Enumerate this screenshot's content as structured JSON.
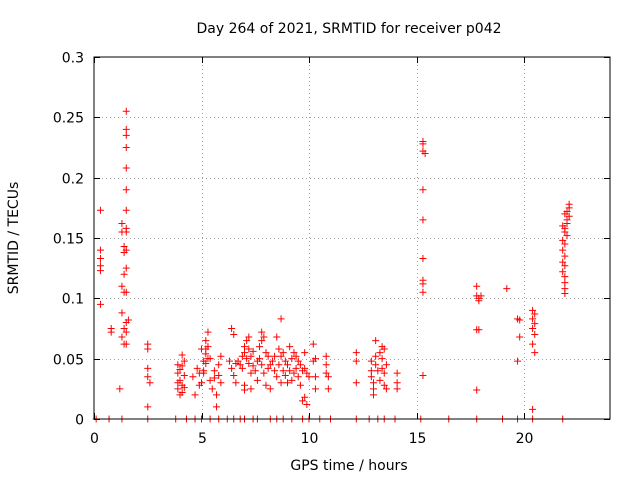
{
  "chart_data": {
    "type": "scatter",
    "title": "Day 264 of 2021, SRMTID for receiver p042",
    "xlabel": "GPS time / hours",
    "ylabel": "SRMTID / TECUs",
    "xlim": [
      0,
      24
    ],
    "ylim": [
      0,
      0.3
    ],
    "grid": true,
    "marker": "+",
    "colors": {
      "series": "#ff0000",
      "axis": "#000000",
      "grid": "#a0a0a0"
    },
    "x_ticks": [
      {
        "value": 0,
        "label": "0"
      },
      {
        "value": 5,
        "label": "5"
      },
      {
        "value": 10,
        "label": "10"
      },
      {
        "value": 15,
        "label": "15"
      },
      {
        "value": 20,
        "label": "20"
      }
    ],
    "y_ticks": [
      {
        "value": 0,
        "label": "0"
      },
      {
        "value": 0.05,
        "label": "0.05"
      },
      {
        "value": 0.1,
        "label": "0.1"
      },
      {
        "value": 0.15,
        "label": "0.15"
      },
      {
        "value": 0.2,
        "label": "0.2"
      },
      {
        "value": 0.25,
        "label": "0.25"
      },
      {
        "value": 0.3,
        "label": "0.3"
      }
    ],
    "points": [
      [
        0.3,
        0.173
      ],
      [
        0.3,
        0.14
      ],
      [
        0.3,
        0.133
      ],
      [
        0.3,
        0.127
      ],
      [
        0.3,
        0.123
      ],
      [
        0.3,
        0.095
      ],
      [
        0.8,
        0.075
      ],
      [
        0.8,
        0.072
      ],
      [
        1.2,
        0.025
      ],
      [
        1.3,
        0.162
      ],
      [
        1.3,
        0.155
      ],
      [
        1.4,
        0.143
      ],
      [
        1.4,
        0.138
      ],
      [
        1.4,
        0.12
      ],
      [
        1.3,
        0.11
      ],
      [
        1.4,
        0.105
      ],
      [
        1.3,
        0.088
      ],
      [
        1.4,
        0.075
      ],
      [
        1.3,
        0.068
      ],
      [
        1.4,
        0.062
      ],
      [
        1.5,
        0.255
      ],
      [
        1.5,
        0.24
      ],
      [
        1.5,
        0.235
      ],
      [
        1.5,
        0.225
      ],
      [
        1.5,
        0.208
      ],
      [
        1.5,
        0.19
      ],
      [
        1.5,
        0.173
      ],
      [
        1.5,
        0.158
      ],
      [
        1.5,
        0.155
      ],
      [
        1.5,
        0.14
      ],
      [
        1.5,
        0.125
      ],
      [
        1.5,
        0.105
      ],
      [
        1.5,
        0.08
      ],
      [
        1.5,
        0.072
      ],
      [
        1.5,
        0.062
      ],
      [
        1.6,
        0.082
      ],
      [
        2.5,
        0.062
      ],
      [
        2.5,
        0.058
      ],
      [
        2.5,
        0.042
      ],
      [
        2.5,
        0.035
      ],
      [
        2.6,
        0.03
      ],
      [
        2.5,
        0.01
      ],
      [
        3.9,
        0.045
      ],
      [
        3.9,
        0.038
      ],
      [
        3.9,
        0.03
      ],
      [
        3.9,
        0.025
      ],
      [
        4.0,
        0.041
      ],
      [
        4.0,
        0.032
      ],
      [
        4.1,
        0.028
      ],
      [
        4.1,
        0.022
      ],
      [
        4.1,
        0.053
      ],
      [
        4.2,
        0.048
      ],
      [
        4.2,
        0.036
      ],
      [
        4.2,
        0.026
      ],
      [
        4.0,
        0.02
      ],
      [
        4.1,
        0.044
      ],
      [
        4.6,
        0.035
      ],
      [
        4.7,
        0.02
      ],
      [
        4.8,
        0.042
      ],
      [
        4.9,
        0.038
      ],
      [
        4.9,
        0.028
      ],
      [
        5.0,
        0.03
      ],
      [
        5.1,
        0.048
      ],
      [
        5.1,
        0.04
      ],
      [
        5.1,
        0.038
      ],
      [
        5.2,
        0.065
      ],
      [
        5.2,
        0.058
      ],
      [
        5.2,
        0.054
      ],
      [
        5.2,
        0.046
      ],
      [
        5.3,
        0.072
      ],
      [
        5.3,
        0.06
      ],
      [
        5.3,
        0.05
      ],
      [
        5.4,
        0.05
      ],
      [
        5.4,
        0.032
      ],
      [
        5.5,
        0.025
      ],
      [
        5.6,
        0.04
      ],
      [
        5.6,
        0.034
      ],
      [
        5.7,
        0.02
      ],
      [
        5.7,
        0.01
      ],
      [
        5.8,
        0.045
      ],
      [
        5.8,
        0.036
      ],
      [
        5.9,
        0.052
      ],
      [
        5.9,
        0.03
      ],
      [
        5.0,
        0.058
      ],
      [
        6.3,
        0.048
      ],
      [
        6.4,
        0.075
      ],
      [
        6.4,
        0.042
      ],
      [
        6.5,
        0.07
      ],
      [
        6.5,
        0.036
      ],
      [
        6.6,
        0.046
      ],
      [
        6.6,
        0.03
      ],
      [
        6.7,
        0.048
      ],
      [
        6.8,
        0.045
      ],
      [
        6.9,
        0.052
      ],
      [
        6.9,
        0.042
      ],
      [
        7.0,
        0.06
      ],
      [
        7.0,
        0.055
      ],
      [
        7.0,
        0.028
      ],
      [
        7.0,
        0.024
      ],
      [
        7.1,
        0.065
      ],
      [
        7.1,
        0.05
      ],
      [
        7.2,
        0.068
      ],
      [
        7.2,
        0.058
      ],
      [
        7.2,
        0.046
      ],
      [
        7.3,
        0.052
      ],
      [
        7.3,
        0.038
      ],
      [
        7.3,
        0.025
      ],
      [
        7.4,
        0.056
      ],
      [
        7.4,
        0.044
      ],
      [
        7.5,
        0.04
      ],
      [
        7.6,
        0.048
      ],
      [
        7.6,
        0.032
      ],
      [
        7.7,
        0.06
      ],
      [
        7.7,
        0.05
      ],
      [
        7.8,
        0.072
      ],
      [
        7.8,
        0.065
      ],
      [
        7.8,
        0.045
      ],
      [
        7.9,
        0.068
      ],
      [
        7.9,
        0.038
      ],
      [
        8.0,
        0.055
      ],
      [
        8.0,
        0.028
      ],
      [
        8.1,
        0.052
      ],
      [
        8.1,
        0.042
      ],
      [
        8.2,
        0.045
      ],
      [
        8.2,
        0.025
      ],
      [
        8.3,
        0.048
      ],
      [
        8.4,
        0.052
      ],
      [
        8.4,
        0.04
      ],
      [
        8.5,
        0.068
      ],
      [
        8.5,
        0.035
      ],
      [
        8.6,
        0.058
      ],
      [
        8.6,
        0.045
      ],
      [
        8.7,
        0.083
      ],
      [
        8.7,
        0.052
      ],
      [
        8.7,
        0.03
      ],
      [
        8.8,
        0.055
      ],
      [
        8.8,
        0.04
      ],
      [
        8.9,
        0.048
      ],
      [
        8.9,
        0.036
      ],
      [
        9.0,
        0.045
      ],
      [
        9.0,
        0.03
      ],
      [
        9.1,
        0.06
      ],
      [
        9.1,
        0.04
      ],
      [
        9.2,
        0.05
      ],
      [
        9.2,
        0.032
      ],
      [
        9.3,
        0.055
      ],
      [
        9.3,
        0.038
      ],
      [
        9.4,
        0.052
      ],
      [
        9.4,
        0.042
      ],
      [
        9.5,
        0.048
      ],
      [
        9.5,
        0.035
      ],
      [
        9.6,
        0.045
      ],
      [
        9.6,
        0.028
      ],
      [
        9.7,
        0.04
      ],
      [
        9.7,
        0.015
      ],
      [
        9.8,
        0.055
      ],
      [
        9.8,
        0.042
      ],
      [
        9.8,
        0.018
      ],
      [
        9.9,
        0.038
      ],
      [
        9.9,
        0.012
      ],
      [
        10.0,
        0.035
      ],
      [
        10.2,
        0.062
      ],
      [
        10.2,
        0.048
      ],
      [
        10.3,
        0.05
      ],
      [
        10.3,
        0.035
      ],
      [
        10.3,
        0.025
      ],
      [
        10.8,
        0.052
      ],
      [
        10.8,
        0.045
      ],
      [
        10.8,
        0.038
      ],
      [
        10.9,
        0.035
      ],
      [
        10.9,
        0.025
      ],
      [
        12.2,
        0.055
      ],
      [
        12.2,
        0.048
      ],
      [
        12.2,
        0.03
      ],
      [
        12.9,
        0.048
      ],
      [
        12.9,
        0.04
      ],
      [
        12.9,
        0.035
      ],
      [
        13.0,
        0.03
      ],
      [
        13.0,
        0.025
      ],
      [
        13.0,
        0.02
      ],
      [
        13.1,
        0.052
      ],
      [
        13.1,
        0.045
      ],
      [
        13.1,
        0.065
      ],
      [
        13.2,
        0.04
      ],
      [
        13.3,
        0.055
      ],
      [
        13.3,
        0.032
      ],
      [
        13.4,
        0.06
      ],
      [
        13.4,
        0.05
      ],
      [
        13.4,
        0.042
      ],
      [
        13.5,
        0.058
      ],
      [
        13.5,
        0.038
      ],
      [
        13.5,
        0.028
      ],
      [
        13.6,
        0.045
      ],
      [
        13.6,
        0.025
      ],
      [
        14.1,
        0.038
      ],
      [
        14.1,
        0.03
      ],
      [
        14.1,
        0.025
      ],
      [
        15.3,
        0.23
      ],
      [
        15.3,
        0.228
      ],
      [
        15.3,
        0.222
      ],
      [
        15.4,
        0.22
      ],
      [
        15.3,
        0.19
      ],
      [
        15.3,
        0.165
      ],
      [
        15.3,
        0.133
      ],
      [
        15.3,
        0.115
      ],
      [
        15.3,
        0.112
      ],
      [
        15.3,
        0.105
      ],
      [
        15.3,
        0.036
      ],
      [
        17.8,
        0.11
      ],
      [
        17.8,
        0.102
      ],
      [
        17.9,
        0.1
      ],
      [
        18.0,
        0.102
      ],
      [
        17.9,
        0.098
      ],
      [
        17.8,
        0.074
      ],
      [
        17.9,
        0.074
      ],
      [
        17.8,
        0.024
      ],
      [
        19.2,
        0.108
      ],
      [
        19.7,
        0.083
      ],
      [
        19.8,
        0.082
      ],
      [
        19.8,
        0.068
      ],
      [
        19.7,
        0.048
      ],
      [
        20.4,
        0.09
      ],
      [
        20.5,
        0.087
      ],
      [
        20.4,
        0.083
      ],
      [
        20.5,
        0.079
      ],
      [
        20.4,
        0.075
      ],
      [
        20.5,
        0.07
      ],
      [
        20.4,
        0.062
      ],
      [
        20.5,
        0.055
      ],
      [
        20.4,
        0.008
      ],
      [
        21.8,
        0.16
      ],
      [
        21.9,
        0.158
      ],
      [
        21.9,
        0.155
      ],
      [
        21.8,
        0.148
      ],
      [
        21.9,
        0.145
      ],
      [
        21.8,
        0.14
      ],
      [
        21.9,
        0.135
      ],
      [
        21.8,
        0.13
      ],
      [
        21.9,
        0.127
      ],
      [
        21.8,
        0.122
      ],
      [
        21.9,
        0.118
      ],
      [
        21.9,
        0.113
      ],
      [
        21.9,
        0.108
      ],
      [
        21.9,
        0.104
      ],
      [
        22.0,
        0.165
      ],
      [
        22.0,
        0.172
      ],
      [
        22.0,
        0.162
      ],
      [
        22.1,
        0.168
      ],
      [
        22.1,
        0.175
      ],
      [
        22.1,
        0.178
      ],
      [
        21.9,
        0.17
      ],
      [
        22.0,
        0.152
      ],
      [
        0.1,
        0
      ],
      [
        0.7,
        0
      ],
      [
        1.3,
        0
      ],
      [
        2.5,
        0
      ],
      [
        3.8,
        0
      ],
      [
        4.3,
        0
      ],
      [
        4.7,
        0
      ],
      [
        5.0,
        0
      ],
      [
        5.4,
        0
      ],
      [
        5.8,
        0
      ],
      [
        6.2,
        0
      ],
      [
        6.5,
        0
      ],
      [
        6.8,
        0
      ],
      [
        7.0,
        0
      ],
      [
        7.4,
        0
      ],
      [
        7.6,
        0
      ],
      [
        8.2,
        0
      ],
      [
        8.5,
        0
      ],
      [
        8.8,
        0
      ],
      [
        9.2,
        0
      ],
      [
        9.7,
        0
      ],
      [
        10.0,
        0
      ],
      [
        10.5,
        0
      ],
      [
        11.0,
        0
      ],
      [
        12.2,
        0
      ],
      [
        12.8,
        0
      ],
      [
        13.2,
        0
      ],
      [
        13.5,
        0
      ],
      [
        14.0,
        0
      ],
      [
        15.2,
        0
      ],
      [
        16.5,
        0
      ],
      [
        17.8,
        0
      ],
      [
        19.0,
        0
      ],
      [
        19.7,
        0
      ],
      [
        20.4,
        0
      ],
      [
        21.8,
        0
      ]
    ]
  }
}
